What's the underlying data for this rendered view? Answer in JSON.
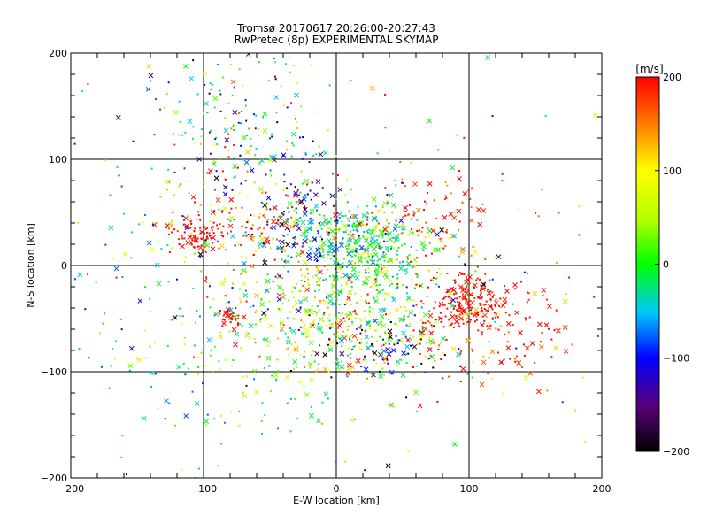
{
  "chart_data": {
    "type": "scatter",
    "title": "Tromsø 20170617 20:26:00-20:27:43",
    "subtitle": "RwPretec (8p) EXPERIMENTAL SKYMAP",
    "xlabel": "E-W location [km]",
    "ylabel": "N-S location [km]",
    "xlim": [
      -200,
      200
    ],
    "ylim": [
      -200,
      200
    ],
    "xticks": [
      -200,
      -100,
      0,
      100,
      200
    ],
    "yticks": [
      -200,
      -100,
      0,
      100,
      200
    ],
    "grid": true,
    "colorbar": {
      "label": "[m/s]",
      "range": [
        -200,
        200
      ],
      "ticks": [
        200,
        100,
        0,
        -100,
        -200
      ],
      "colormap": "rainbow: -200 black/purple, -100 blue, 0 green, 100 yellow, 200 red"
    },
    "markers": [
      "dot",
      "x"
    ],
    "clusters": [
      {
        "x": 20,
        "y": 20,
        "sx": 22,
        "sy": 20,
        "vel": 0,
        "vspread": 50,
        "n": 380
      },
      {
        "x": 10,
        "y": -45,
        "sx": 45,
        "sy": 25,
        "vel": 60,
        "vspread": 80,
        "n": 420
      },
      {
        "x": 100,
        "y": -35,
        "sx": 14,
        "sy": 12,
        "vel": 200,
        "vspread": 15,
        "n": 170
      },
      {
        "x": 125,
        "y": -60,
        "sx": 35,
        "sy": 25,
        "vel": 190,
        "vspread": 20,
        "n": 120
      },
      {
        "x": 70,
        "y": 45,
        "sx": 22,
        "sy": 20,
        "vel": 180,
        "vspread": 40,
        "n": 90
      },
      {
        "x": -105,
        "y": 30,
        "sx": 12,
        "sy": 8,
        "vel": 200,
        "vspread": 10,
        "n": 90
      },
      {
        "x": -65,
        "y": 40,
        "sx": 35,
        "sy": 30,
        "vel": 170,
        "vspread": 70,
        "n": 150
      },
      {
        "x": -30,
        "y": 40,
        "sx": 22,
        "sy": 25,
        "vel": -110,
        "vspread": 60,
        "n": 130
      },
      {
        "x": -70,
        "y": 130,
        "sx": 35,
        "sy": 35,
        "vel": -20,
        "vspread": 90,
        "n": 170
      },
      {
        "x": -80,
        "y": -48,
        "sx": 5,
        "sy": 4,
        "vel": 200,
        "vspread": 10,
        "n": 35
      },
      {
        "x": 30,
        "y": -80,
        "sx": 25,
        "sy": 15,
        "vel": -80,
        "vspread": 100,
        "n": 90
      },
      {
        "x": -40,
        "y": -70,
        "sx": 55,
        "sy": 50,
        "vel": 10,
        "vspread": 60,
        "n": 200
      },
      {
        "x": -150,
        "y": -40,
        "sx": 35,
        "sy": 70,
        "vel": -30,
        "vspread": 60,
        "n": 80
      },
      {
        "x": 0,
        "y": 0,
        "sx": 120,
        "sy": 110,
        "vel": 40,
        "vspread": 130,
        "n": 250
      }
    ]
  }
}
